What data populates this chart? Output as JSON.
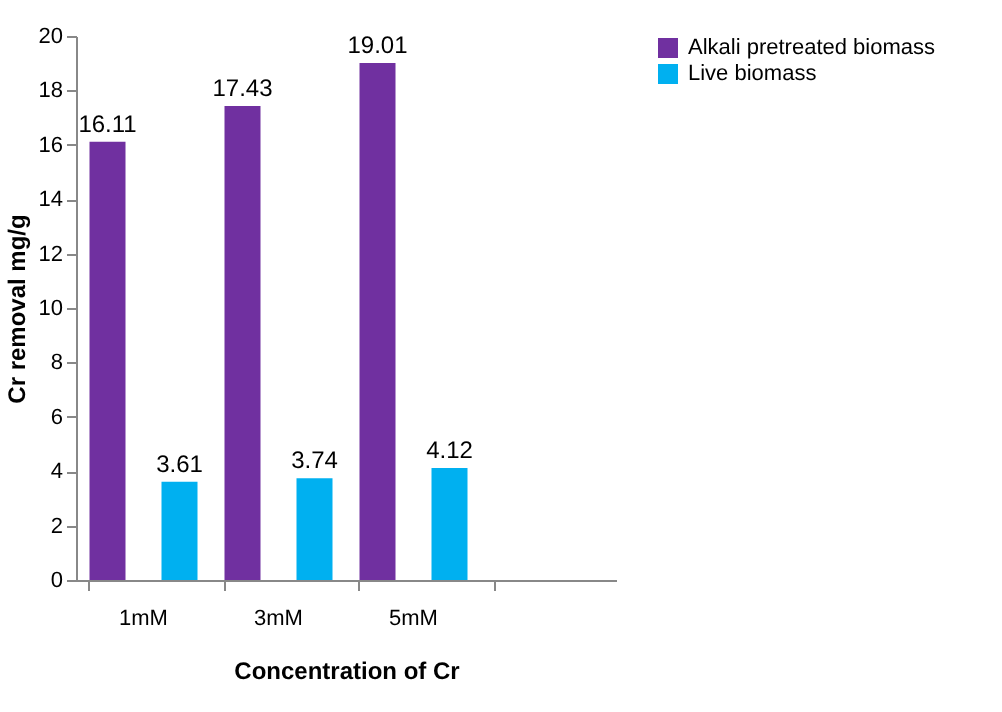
{
  "chart_data": {
    "type": "bar",
    "xlabel": "Concentration of Cr",
    "ylabel": "Cr removal mg/g",
    "categories": [
      "1mM",
      "3mM",
      "5mM",
      null
    ],
    "series": [
      {
        "name": "Alkali pretreated biomass",
        "color": "#7030a0",
        "values": [
          16.11,
          17.43,
          19.01,
          null
        ]
      },
      {
        "name": "Live biomass",
        "color": "#00b0f0",
        "values": [
          3.61,
          3.74,
          4.12,
          null
        ]
      }
    ],
    "ylim": [
      0,
      20
    ],
    "yticks": [
      0,
      2,
      4,
      6,
      8,
      10,
      12,
      14,
      16,
      18,
      20
    ],
    "grid": false,
    "legend": "right",
    "data_labels": true
  }
}
